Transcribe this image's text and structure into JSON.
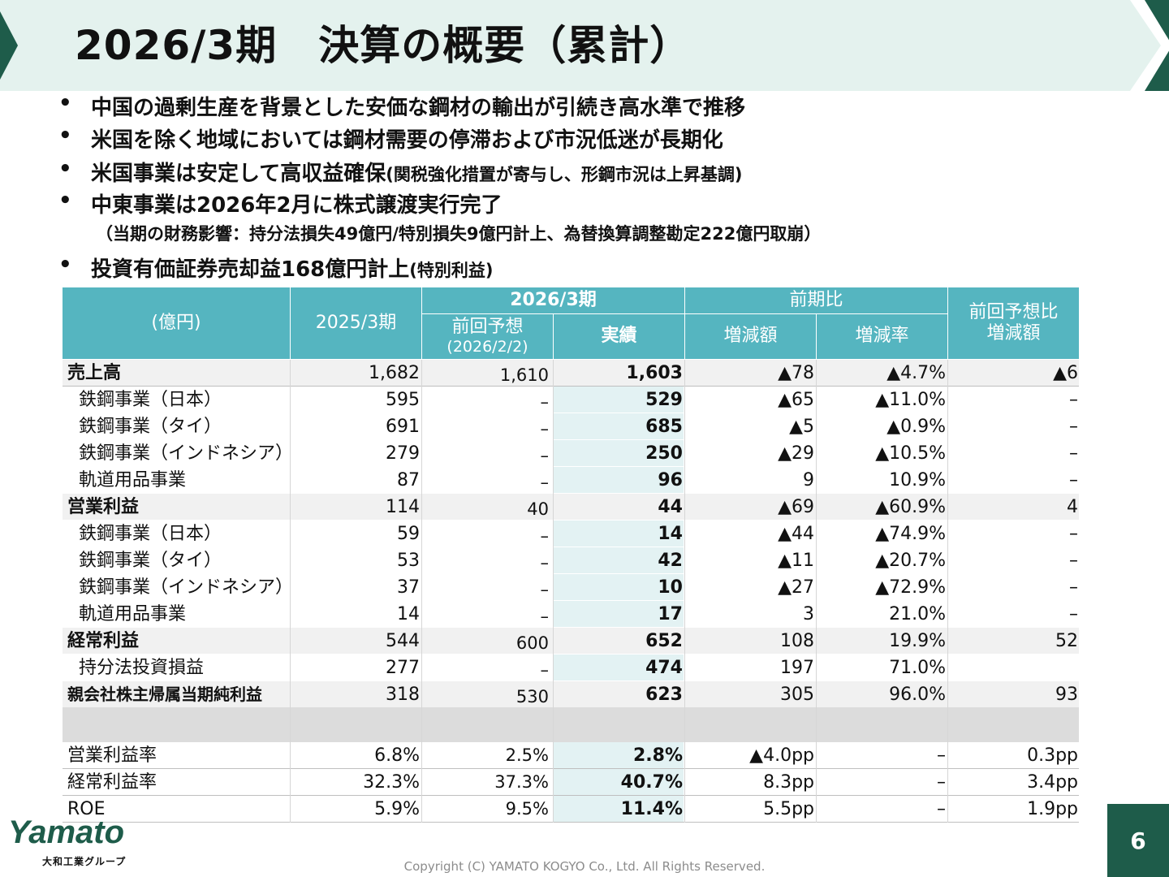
{
  "title": "2026/3期　決算の概要（累計）",
  "bullets": [
    {
      "text": "中国の過剰生産を背景とした安価な鋼材の輸出が引続き高水準で推移",
      "note": ""
    },
    {
      "text": "米国を除く地域においては鋼材需要の停滞および市況低迷が長期化",
      "note": ""
    },
    {
      "text": "米国事業は安定して高収益確保",
      "note": "(関税強化措置が寄与し、形鋼市況は上昇基調)"
    },
    {
      "text": "中東事業は2026年2月に株式譲渡実行完了",
      "note": ""
    },
    {
      "text": "投資有価証券売却益168億円計上",
      "note": "(特別利益)"
    }
  ],
  "bullet_subline": "（当期の財務影響：持分法損失49億円/特別損失9億円計上、為替換算調整勘定222億円取崩）",
  "bullet_marker": "•",
  "table": {
    "header": {
      "unit": "(億円)",
      "prev_year": "2025/3期",
      "current_group": "2026/3期",
      "forecast": "前回予想",
      "forecast_date": "(2026/2/2)",
      "actual": "実績",
      "yoy_group": "前期比",
      "diff": "増減額",
      "rate": "増減率",
      "vs_forecast_line1": "前回予想比",
      "vs_forecast_line2": "増減額"
    },
    "rows": [
      {
        "label": "売上高",
        "style": "strong",
        "v": [
          "1,682",
          "1,610",
          "1,603",
          "▲78",
          "▲4.7%",
          "▲6"
        ]
      },
      {
        "label": "鉄鋼事業（日本）",
        "style": "indent",
        "v": [
          "595",
          "–",
          "529",
          "▲65",
          "▲11.0%",
          "–"
        ]
      },
      {
        "label": "鉄鋼事業（タイ）",
        "style": "indent",
        "v": [
          "691",
          "–",
          "685",
          "▲5",
          "▲0.9%",
          "–"
        ]
      },
      {
        "label": "鉄鋼事業（インドネシア）",
        "style": "indent",
        "v": [
          "279",
          "–",
          "250",
          "▲29",
          "▲10.5%",
          "–"
        ]
      },
      {
        "label": "軌道用品事業",
        "style": "indent",
        "v": [
          "87",
          "–",
          "96",
          "9",
          "10.9%",
          "–"
        ]
      },
      {
        "label": "営業利益",
        "style": "strong",
        "v": [
          "114",
          "40",
          "44",
          "▲69",
          "▲60.9%",
          "4"
        ]
      },
      {
        "label": "鉄鋼事業（日本）",
        "style": "indent",
        "v": [
          "59",
          "–",
          "14",
          "▲44",
          "▲74.9%",
          "–"
        ]
      },
      {
        "label": "鉄鋼事業（タイ）",
        "style": "indent",
        "v": [
          "53",
          "–",
          "42",
          "▲11",
          "▲20.7%",
          "–"
        ]
      },
      {
        "label": "鉄鋼事業（インドネシア）",
        "style": "indent",
        "v": [
          "37",
          "–",
          "10",
          "▲27",
          "▲72.9%",
          "–"
        ]
      },
      {
        "label": "軌道用品事業",
        "style": "indent",
        "v": [
          "14",
          "–",
          "17",
          "3",
          "21.0%",
          "–"
        ]
      },
      {
        "label": "経常利益",
        "style": "strong",
        "v": [
          "544",
          "600",
          "652",
          "108",
          "19.9%",
          "52"
        ]
      },
      {
        "label": "持分法投資損益",
        "style": "indent",
        "v": [
          "277",
          "–",
          "474",
          "197",
          "71.0%",
          ""
        ]
      },
      {
        "label": "親会社株主帰属当期純利益",
        "style": "strong",
        "v": [
          "318",
          "530",
          "623",
          "305",
          "96.0%",
          "93"
        ]
      }
    ],
    "ratio_rows": [
      {
        "label": "営業利益率",
        "v": [
          "6.8%",
          "2.5%",
          "2.8%",
          "▲4.0pp",
          "–",
          "0.3pp"
        ]
      },
      {
        "label": "経常利益率",
        "v": [
          "32.3%",
          "37.3%",
          "40.7%",
          "8.3pp",
          "–",
          "3.4pp"
        ]
      },
      {
        "label": "ROE",
        "v": [
          "5.9%",
          "9.5%",
          "11.4%",
          "5.5pp",
          "–",
          "1.9pp"
        ]
      }
    ]
  },
  "logo_text": "Yamato",
  "logo_subtitle": "大和工業グループ",
  "copyright": "Copyright (C) YAMATO KOGYO Co., Ltd. All Rights Reserved.",
  "page_number": "6",
  "colors": {
    "banner": "#e4f2ee",
    "accent_green": "#1e5c4a",
    "header_teal": "#55b5c0",
    "actual_highlight": "#e3f2f3"
  }
}
